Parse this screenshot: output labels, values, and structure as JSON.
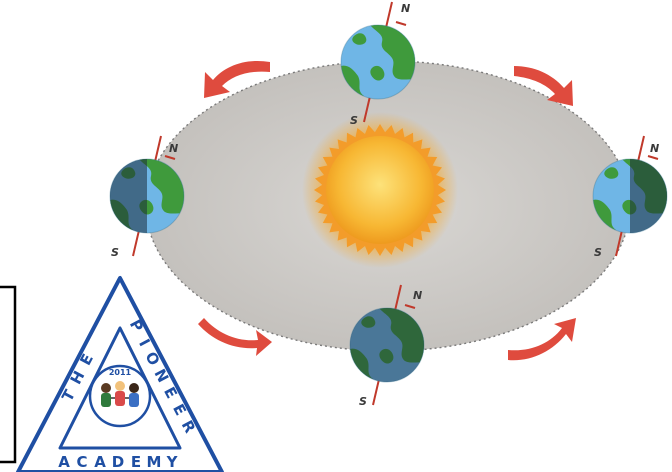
{
  "diagram": {
    "poles": {
      "north": "N",
      "south": "S"
    },
    "earth_positions": [
      "top",
      "left",
      "right",
      "bottom"
    ],
    "orbit_direction": "counter-clockwise",
    "colors": {
      "orbit_fill": "#cfcdca",
      "sun_core": "#f7b733",
      "sun_corona": "#f39c2a",
      "ocean": "#6fb6e6",
      "land": "#3f9a3c",
      "arrow": "#df4b3e",
      "axis": "#c0392b"
    }
  },
  "logo": {
    "name_top": [
      "T",
      "H",
      "E"
    ],
    "name_right": [
      "P",
      "I",
      "O",
      "N",
      "E",
      "E",
      "R"
    ],
    "name_bottom": [
      "A",
      "C",
      "A",
      "D",
      "E",
      "M",
      "Y"
    ],
    "year": "2011",
    "color": "#1f4fa3"
  }
}
